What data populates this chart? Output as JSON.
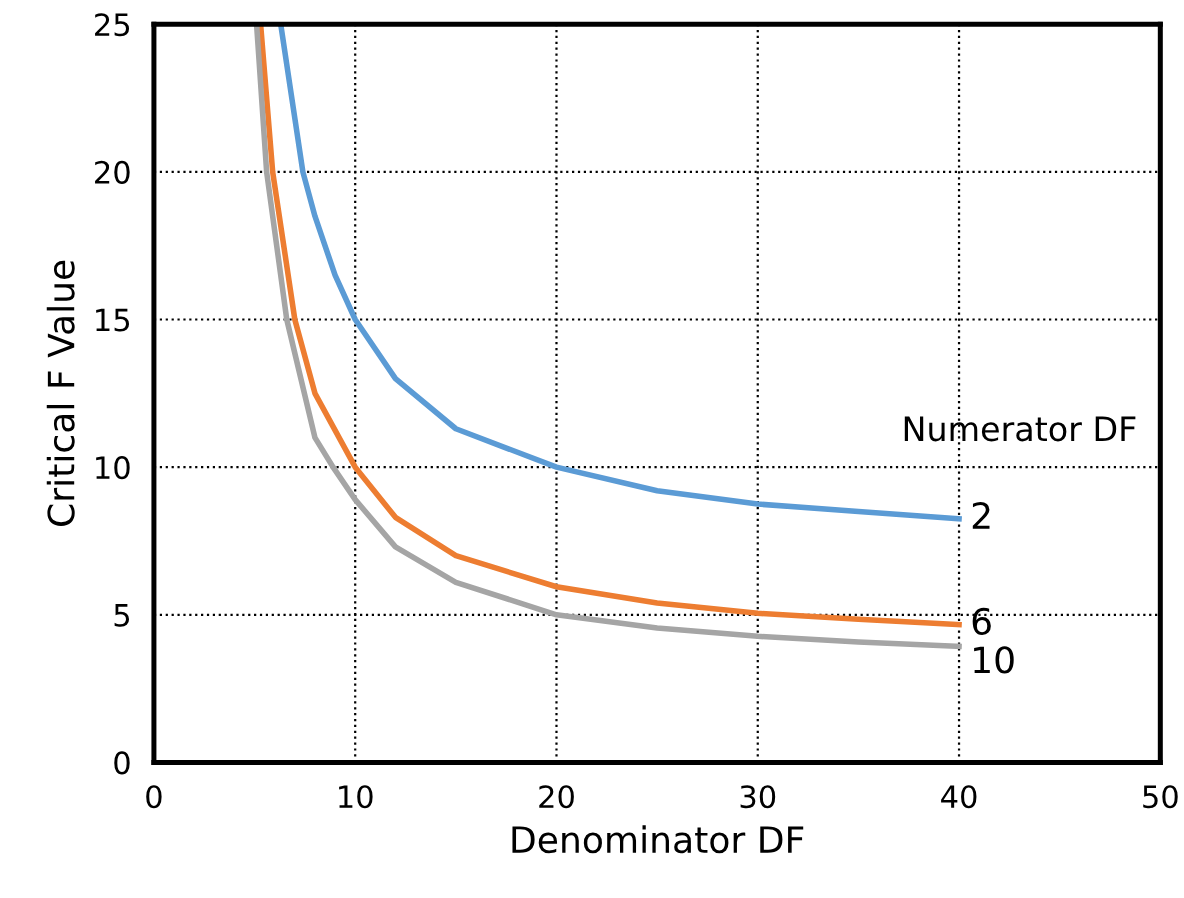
{
  "chart_data": {
    "type": "line",
    "xlabel": "Denominator DF",
    "ylabel": "Critical F Value",
    "legend_title": "Numerator DF",
    "xlim": [
      0,
      50
    ],
    "ylim": [
      0,
      25
    ],
    "xticks": [
      0,
      10,
      20,
      30,
      40,
      50
    ],
    "yticks": [
      0,
      5,
      10,
      15,
      20,
      25
    ],
    "grid": true,
    "series": [
      {
        "name": "2",
        "color": "#5b9bd5",
        "x": [
          6.3,
          7.4,
          8,
          9,
          10,
          12,
          15,
          20,
          25,
          30,
          35,
          40
        ],
        "values": [
          25,
          20,
          18.5,
          16.5,
          15,
          13,
          11.3,
          10,
          9.2,
          8.75,
          8.5,
          8.25
        ]
      },
      {
        "name": "6",
        "color": "#ed7d31",
        "x": [
          5.3,
          5.9,
          7,
          8,
          10,
          12,
          15,
          20,
          25,
          30,
          35,
          40
        ],
        "values": [
          25,
          20,
          15,
          12.5,
          10,
          8.3,
          7,
          5.95,
          5.4,
          5.05,
          4.85,
          4.67
        ]
      },
      {
        "name": "10",
        "color": "#a5a5a5",
        "x": [
          5.1,
          5.6,
          6.6,
          8,
          8.9,
          10,
          12,
          15,
          20,
          25,
          30,
          35,
          40
        ],
        "values": [
          25,
          20,
          15,
          11,
          10,
          8.9,
          7.3,
          6.1,
          5.0,
          4.55,
          4.27,
          4.08,
          3.93
        ]
      }
    ]
  }
}
